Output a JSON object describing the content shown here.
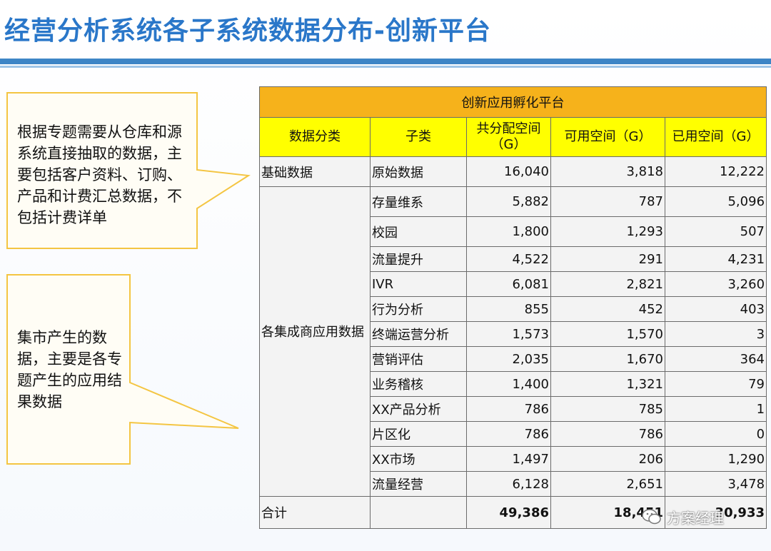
{
  "page": {
    "title": "经营分析系统各子系统数据分布-创新平台"
  },
  "callouts": {
    "top": "根据专题需要从仓库和源系统直接抽取的数据，主要包括客户资料、订购、产品和计费汇总数据，不包括计费详单",
    "bottom": "集市产生的数据，主要是各专题产生的应用结果数据"
  },
  "table": {
    "platform": "创新应用孵化平台",
    "headers": [
      "数据分类",
      "子类",
      "共分配空间（G）",
      "可用空间（G）",
      "已用空间（G）"
    ],
    "groups": [
      {
        "category": "基础数据",
        "rows": [
          {
            "sub": "原始数据",
            "total": "16,040",
            "available": "3,818",
            "used": "12,222"
          }
        ]
      },
      {
        "category": "各集成商应用数据",
        "rows": [
          {
            "sub": "存量维系",
            "total": "5,882",
            "available": "787",
            "used": "5,096"
          },
          {
            "sub": "校园",
            "total": "1,800",
            "available": "1,293",
            "used": "507"
          },
          {
            "sub": "流量提升",
            "total": "4,522",
            "available": "291",
            "used": "4,231"
          },
          {
            "sub": "IVR",
            "total": "6,081",
            "available": "2,821",
            "used": "3,260"
          },
          {
            "sub": "行为分析",
            "total": "855",
            "available": "452",
            "used": "403"
          },
          {
            "sub": "终端运营分析",
            "total": "1,573",
            "available": "1,570",
            "used": "3"
          },
          {
            "sub": "营销评估",
            "total": "2,035",
            "available": "1,670",
            "used": "364"
          },
          {
            "sub": "业务稽核",
            "total": "1,400",
            "available": "1,321",
            "used": "79"
          },
          {
            "sub": "XX产品分析",
            "total": "786",
            "available": "785",
            "used": "1"
          },
          {
            "sub": "片区化",
            "total": "786",
            "available": "786",
            "used": "0"
          },
          {
            "sub": "XX市场",
            "total": "1,497",
            "available": "206",
            "used": "1,290"
          },
          {
            "sub": "流量经营",
            "total": "6,128",
            "available": "2,651",
            "used": "3,478"
          }
        ]
      }
    ],
    "total": {
      "label": "合计",
      "total": "49,386",
      "available": "18,451",
      "used": "30,933"
    }
  },
  "watermark": {
    "text": "方案经理",
    "icon": "wechat-icon"
  },
  "colors": {
    "title": "#2a77c9",
    "platform_header": "#f6b21b",
    "column_header": "#ffff00",
    "callout_border": "#f4c542",
    "rule": "#3d85c6"
  }
}
